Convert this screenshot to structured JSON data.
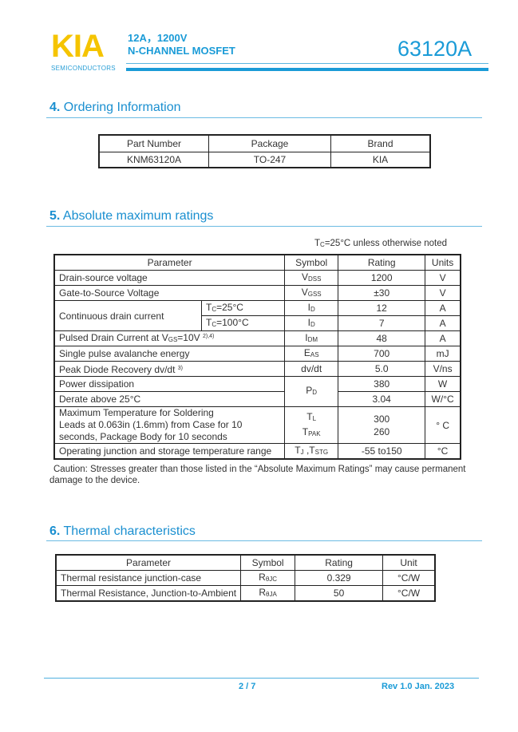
{
  "header": {
    "logo": "KIA",
    "logo_sub": "SEMICONDUCTORS",
    "spec_line1": "12A，1200V",
    "spec_line2": "N-CHANNEL MOSFET",
    "part_number": "63120A",
    "accent_color": "#1a9bd7",
    "logo_color": "#f5c400"
  },
  "ordering": {
    "title_num": "4.",
    "title": "Ordering Information",
    "headers": [
      "Part Number",
      "Package",
      "Brand"
    ],
    "row": [
      "KNM63120A",
      "TO-247",
      "KIA"
    ]
  },
  "abs_max": {
    "title_num": "5.",
    "title": "Absolute maximum ratings",
    "condition_main": "T",
    "condition_sub": "C",
    "condition_rest": "=25°C unless otherwise noted",
    "headers": [
      "Parameter",
      "Symbol",
      "Rating",
      "Units"
    ],
    "rows": [
      {
        "param": "Drain-source voltage",
        "sym": "V",
        "sym_sub": "DSS",
        "rating": "1200",
        "unit": "V"
      },
      {
        "param": "Gate-to-Source Voltage",
        "sym": "V",
        "sym_sub": "GSS",
        "rating": "±30",
        "unit": "V"
      },
      {
        "param": "Continuous drain current",
        "cond1": "=25°C",
        "cond2": "=100°C",
        "cond_main": "T",
        "cond_sub": "C",
        "sym": "I",
        "sym_sub": "D",
        "rating1": "12",
        "rating2": "7",
        "unit": "A"
      },
      {
        "param": "Pulsed Drain Current at V",
        "param_sub": "GS",
        "param_rest": "=10V ",
        "param_note": "2),4)",
        "sym": "I",
        "sym_sub": "DM",
        "rating": "48",
        "unit": "A"
      },
      {
        "param": "Single pulse avalanche energy",
        "sym": "E",
        "sym_sub": "AS",
        "rating": "700",
        "unit": "mJ"
      },
      {
        "param": "Peak Diode Recovery dv/dt ",
        "param_note": "3)",
        "sym": "dv/dt",
        "rating": "5.0",
        "unit": "V/ns"
      },
      {
        "param": "Power dissipation",
        "sym": "P",
        "sym_sub": "D",
        "rating": "380",
        "unit": "W"
      },
      {
        "param": "Derate above 25°C",
        "rating": "3.04",
        "unit": "W/°C"
      },
      {
        "param_line1": "Maximum Temperature for Soldering",
        "param_line2": "Leads at 0.063in (1.6mm) from Case for 10",
        "param_line3": "seconds, Package Body for 10 seconds",
        "sym1": "T",
        "sym1_sub": "L",
        "sym2": "T",
        "sym2_sub": "PAK",
        "rating1": "300",
        "rating2": "260",
        "unit": "° C"
      },
      {
        "param": "Operating junction and storage temperature range",
        "sym": "T",
        "sym_sub": "J",
        "sym_mid": " ,T",
        "sym_sub2": "STG",
        "rating": "-55 to150",
        "unit": "°C"
      }
    ],
    "caution": "Caution: Stresses greater than those listed in the “Absolute Maximum Ratings” may cause permanent damage to the device."
  },
  "thermal": {
    "title_num": "6.",
    "title": "Thermal characteristics",
    "headers": [
      "Parameter",
      "Symbol",
      "Rating",
      "Unit"
    ],
    "rows": [
      {
        "param": "Thermal resistance junction-case",
        "sym": "R",
        "sym_sub": "θJC",
        "rating": "0.329",
        "unit": "°C/W"
      },
      {
        "param": "Thermal Resistance, Junction-to-Ambient",
        "sym": "R",
        "sym_sub": "θJA",
        "rating": "50",
        "unit": "°C/W"
      }
    ]
  },
  "footer": {
    "page": "2 / 7",
    "revision": "Rev 1.0 Jan. 2023"
  }
}
